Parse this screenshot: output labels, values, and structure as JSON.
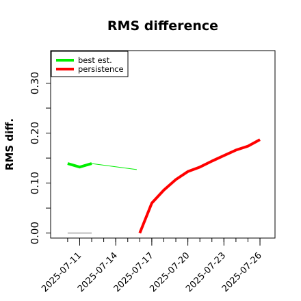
{
  "chart_data": {
    "type": "line",
    "title": "RMS difference",
    "xlabel": "",
    "ylabel": "RMS diff.",
    "x_ticks": [
      "2025-07-11",
      "2025-07-14",
      "2025-07-17",
      "2025-07-20",
      "2025-07-23",
      "2025-07-26"
    ],
    "y_ticks": [
      "0.00",
      "0.10",
      "0.20",
      "0.30"
    ],
    "y_tick_values": [
      0.0,
      0.1,
      0.2,
      0.3
    ],
    "ylim": [
      -0.01,
      0.365
    ],
    "xlim": [
      "2025-07-08T14:00",
      "2025-07-27T06:00"
    ],
    "legend_position": "top-left",
    "grid": false,
    "series": [
      {
        "name": "best est.",
        "color": "#00ee00",
        "points": [
          {
            "x": "2025-07-10",
            "y": 0.139
          },
          {
            "x": "2025-07-11",
            "y": 0.132
          },
          {
            "x": "2025-07-12",
            "y": 0.139
          }
        ]
      },
      {
        "name": "persistence",
        "color": "#ff0000",
        "points": [
          {
            "x": "2025-07-16",
            "y": 0.0
          },
          {
            "x": "2025-07-17",
            "y": 0.06
          },
          {
            "x": "2025-07-18",
            "y": 0.086
          },
          {
            "x": "2025-07-19",
            "y": 0.107
          },
          {
            "x": "2025-07-20",
            "y": 0.123
          },
          {
            "x": "2025-07-21",
            "y": 0.132
          },
          {
            "x": "2025-07-22",
            "y": 0.144
          },
          {
            "x": "2025-07-23",
            "y": 0.155
          },
          {
            "x": "2025-07-24",
            "y": 0.166
          },
          {
            "x": "2025-07-25",
            "y": 0.174
          },
          {
            "x": "2025-07-26",
            "y": 0.187
          }
        ]
      }
    ],
    "extra_lines": [
      {
        "color": "#00ee00",
        "from": {
          "x": "2025-07-12",
          "y": 0.139
        },
        "to": {
          "x": "2025-07-15T18:00",
          "y": 0.127
        }
      },
      {
        "color": "#777777",
        "from": {
          "x": "2025-07-10",
          "y": 0.0
        },
        "to": {
          "x": "2025-07-12",
          "y": 0.0
        }
      }
    ]
  }
}
